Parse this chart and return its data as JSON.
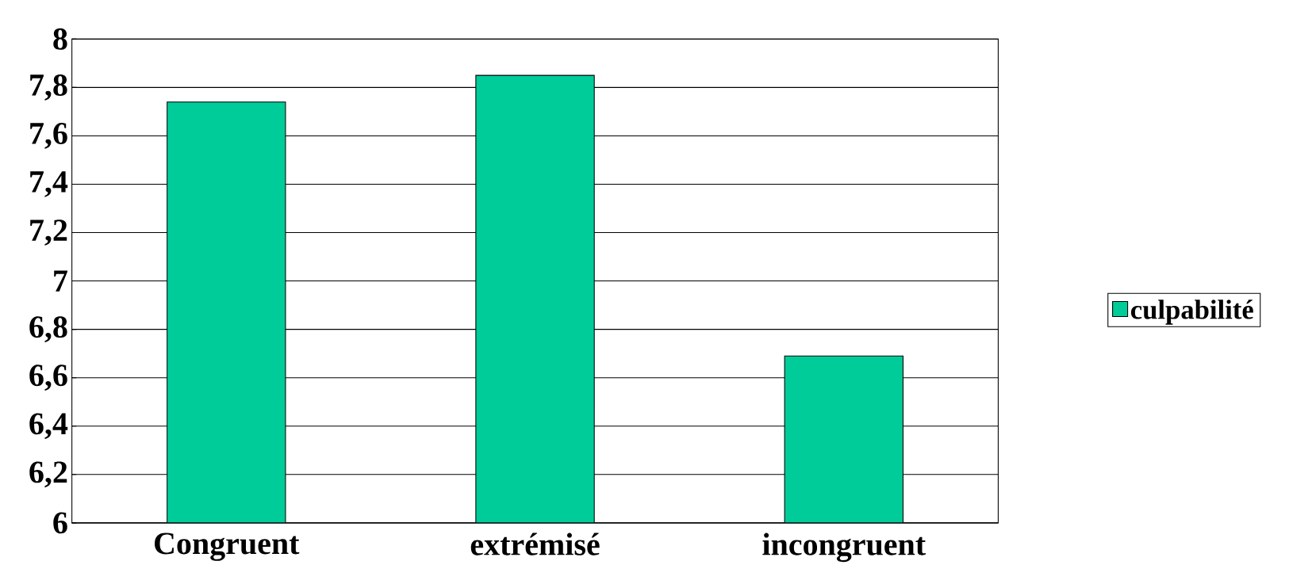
{
  "chart_data": {
    "type": "bar",
    "categories": [
      "Congruent",
      "extrémisé",
      "incongruent"
    ],
    "series": [
      {
        "name": "culpabilité",
        "color": "#00cc99",
        "values": [
          7.74,
          7.85,
          6.69
        ]
      }
    ],
    "ylim": [
      6,
      8
    ],
    "yticks": [
      6,
      {
        "value": 6.2,
        "label": "6,2"
      },
      {
        "value": 6.4,
        "label": "6,4"
      },
      {
        "value": 6.6,
        "label": "6,6"
      },
      {
        "value": 6.8,
        "label": "6,8"
      },
      7,
      {
        "value": 7.2,
        "label": "7,2"
      },
      {
        "value": 7.4,
        "label": "7,4"
      },
      {
        "value": 7.6,
        "label": "7,6"
      },
      {
        "value": 7.8,
        "label": "7,8"
      },
      8
    ],
    "grid": "y",
    "legend": "right"
  }
}
